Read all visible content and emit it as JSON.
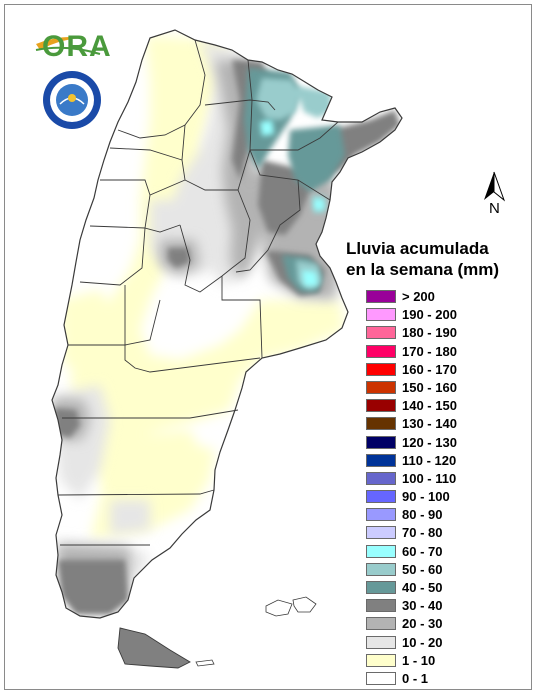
{
  "logo": {
    "text": "ORA"
  },
  "seal": {
    "text": "SERVICIO METEOROLOGICO NACIONAL ARGENTINA"
  },
  "north_arrow": {
    "label": "N"
  },
  "legend": {
    "title": "Lluvia acumulada\nen la semana (mm)",
    "items": [
      {
        "label": "> 200",
        "color": "#990099"
      },
      {
        "label": "190 - 200",
        "color": "#ff99ff"
      },
      {
        "label": "180 - 190",
        "color": "#ff6699"
      },
      {
        "label": "170 - 180",
        "color": "#ff0066"
      },
      {
        "label": "160 - 170",
        "color": "#ff0000"
      },
      {
        "label": "150 - 160",
        "color": "#cc3300"
      },
      {
        "label": "140 - 150",
        "color": "#990000"
      },
      {
        "label": "130 - 140",
        "color": "#663300"
      },
      {
        "label": "120 - 130",
        "color": "#000066"
      },
      {
        "label": "110 - 120",
        "color": "#003399"
      },
      {
        "label": "100 - 110",
        "color": "#6666cc"
      },
      {
        "label": "90 - 100",
        "color": "#6666ff"
      },
      {
        "label": "80 - 90",
        "color": "#9999ff"
      },
      {
        "label": "70 - 80",
        "color": "#ccccff"
      },
      {
        "label": "60 - 70",
        "color": "#99ffff"
      },
      {
        "label": "50 - 60",
        "color": "#99cccc"
      },
      {
        "label": "40 - 50",
        "color": "#669999"
      },
      {
        "label": "30 - 40",
        "color": "#808080"
      },
      {
        "label": "20 - 30",
        "color": "#b3b3b3"
      },
      {
        "label": "10 - 20",
        "color": "#e6e6e6"
      },
      {
        "label": "1 - 10",
        "color": "#ffffcc"
      },
      {
        "label": "0 - 1",
        "color": "#ffffff"
      }
    ]
  }
}
